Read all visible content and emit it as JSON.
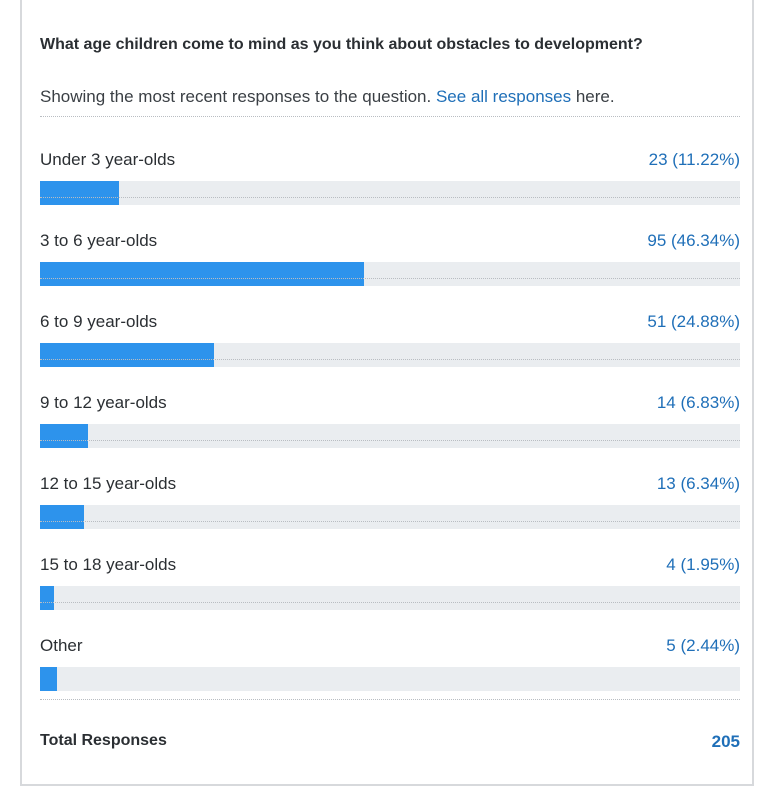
{
  "survey": {
    "question": "What age children come to mind as you think about obstacles to development?",
    "intro_before": "Showing the most recent responses to the question. ",
    "intro_link": "See all responses",
    "intro_after": " here.",
    "total_label": "Total Responses",
    "total_value": "205"
  },
  "colors": {
    "bar": "#2d93ec",
    "track": "#eaedf0",
    "link": "#1f6fb8"
  },
  "chart_data": {
    "type": "bar",
    "categories": [
      "Under 3 year-olds",
      "3 to 6 year-olds",
      "6 to 9 year-olds",
      "9 to 12 year-olds",
      "12 to 15 year-olds",
      "15 to 18 year-olds",
      "Other"
    ],
    "values": [
      23,
      95,
      51,
      14,
      13,
      4,
      5
    ],
    "percent_labels": [
      "11.22%",
      "46.34%",
      "24.88%",
      "6.83%",
      "6.34%",
      "1.95%",
      "2.44%"
    ],
    "value_labels": [
      "23 (11.22%)",
      "95 (46.34%)",
      "51 (24.88%)",
      "14 (6.83%)",
      "13 (6.34%)",
      "4 (1.95%)",
      "5 (2.44%)"
    ],
    "total": 205,
    "title": "What age children come to mind as you think about obstacles to development?",
    "xlim": [
      0,
      100
    ]
  }
}
